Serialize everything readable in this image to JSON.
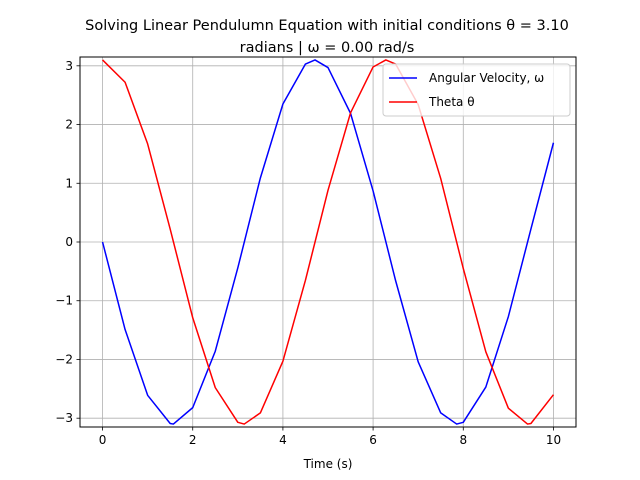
{
  "chart_data": {
    "type": "line",
    "title_line1": "Solving Linear Pendulumn Equation with initial conditions θ = 3.10",
    "title_line2": "radians | ω = 0.00 rad/s",
    "xlabel": "Time (s)",
    "ylabel": "",
    "xlim": [
      -0.5,
      10.5
    ],
    "ylim": [
      -3.15,
      3.15
    ],
    "xticks": [
      0,
      2,
      4,
      6,
      8,
      10
    ],
    "xtick_labels": [
      "0",
      "2",
      "4",
      "6",
      "8",
      "10"
    ],
    "yticks": [
      -3,
      -2,
      -1,
      0,
      1,
      2,
      3
    ],
    "ytick_labels": [
      "−3",
      "−2",
      "−1",
      "0",
      "1",
      "2",
      "3"
    ],
    "grid": true,
    "legend_position": "top-right",
    "series": [
      {
        "name": "Angular Velocity, ω",
        "color": "#0000ff",
        "x": [
          0,
          0.5,
          1,
          1.5,
          1.571,
          2,
          2.5,
          3,
          3.5,
          4,
          4.5,
          4.712,
          5,
          5.5,
          6,
          6.5,
          7,
          7.5,
          7.854,
          8,
          8.5,
          9,
          9.5,
          10
        ],
        "y": [
          0,
          -1.49,
          -2.61,
          -3.09,
          -3.1,
          -2.82,
          -1.86,
          -0.44,
          1.09,
          2.35,
          3.03,
          3.1,
          2.97,
          2.19,
          0.87,
          -0.66,
          -2.04,
          -2.91,
          -3.1,
          -3.07,
          -2.47,
          -1.27,
          0.22,
          1.69
        ]
      },
      {
        "name": "Theta θ",
        "color": "#ff0000",
        "x": [
          0,
          0.5,
          1,
          1.5,
          2,
          2.5,
          3,
          3.142,
          3.5,
          4,
          4.5,
          5,
          5.5,
          6,
          6.283,
          6.5,
          7,
          7.5,
          8,
          8.5,
          9,
          9.425,
          9.5,
          10
        ],
        "y": [
          3.1,
          2.72,
          1.67,
          0.22,
          -1.29,
          -2.48,
          -3.07,
          -3.1,
          -2.91,
          -2.03,
          -0.65,
          0.88,
          2.2,
          2.98,
          3.1,
          3.03,
          2.34,
          1.08,
          -0.45,
          -1.87,
          -2.83,
          -3.1,
          -3.09,
          -2.6
        ]
      }
    ]
  }
}
